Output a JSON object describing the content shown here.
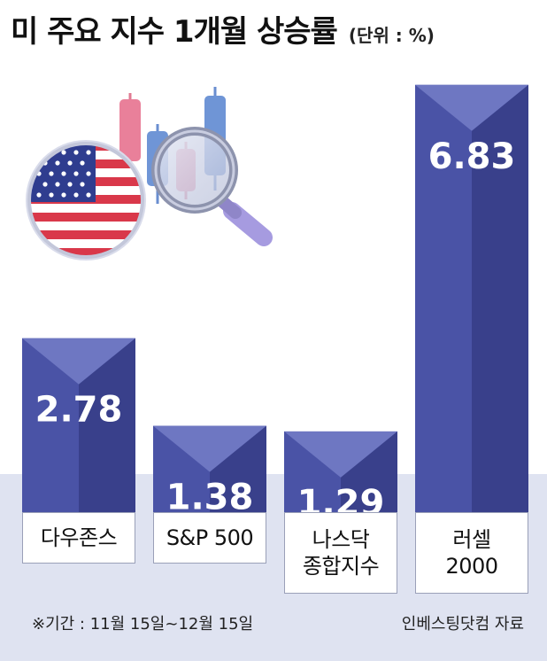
{
  "title": "미 주요 지수 1개월 상승률",
  "unit": "(단위 : %)",
  "chart_data": {
    "type": "bar",
    "title": "미 주요 지수 1개월 상승률",
    "unit": "(단위 : %)",
    "categories": [
      "다우존스",
      "S&P 500",
      "나스닥\n종합지수",
      "러셀\n2000"
    ],
    "values": [
      2.78,
      1.38,
      1.29,
      6.83
    ],
    "value_labels": [
      "2.78",
      "1.38",
      "1.29",
      "6.83"
    ],
    "ylim": [
      0,
      7.5
    ],
    "grid": false,
    "legend": "none"
  },
  "footnote": "※기간 : 11월 15일~12월 15일",
  "source": "인베스팅닷컴 자료",
  "colors": {
    "bar_front": "#4a53a6",
    "bar_side": "#363d86",
    "bar_top": "#6e77c2",
    "band": "#dfe3f1",
    "illustration": "us-flag-and-magnifier-candlestick"
  }
}
